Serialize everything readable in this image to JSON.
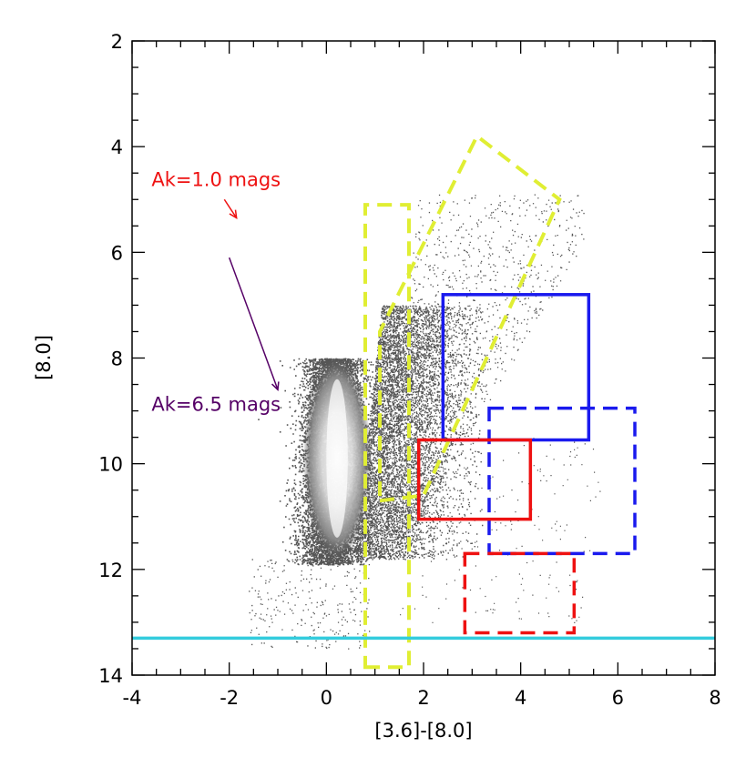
{
  "chart_data": {
    "type": "scatter",
    "xlabel": "[3.6]-[8.0]",
    "ylabel": "[8.0]",
    "xlim": [
      -4,
      8
    ],
    "ylim": [
      14,
      2
    ],
    "y_inverted": true,
    "x_ticks": [
      -4,
      -2,
      0,
      2,
      4,
      6,
      8
    ],
    "y_ticks": [
      2,
      4,
      6,
      8,
      10,
      12,
      14
    ],
    "x_tick_labels": [
      "-4",
      "-2",
      "0",
      "2",
      "4",
      "6",
      "8"
    ],
    "y_tick_labels": [
      "2",
      "4",
      "6",
      "8",
      "10",
      "12",
      "14"
    ],
    "horizontal_line": {
      "y": 13.3,
      "color": "#33ccdd"
    },
    "regions": [
      {
        "name": "yellow-dashed-vertical",
        "style": "dashed",
        "color": "#e0ee33",
        "polygon": [
          [
            0.8,
            13.85
          ],
          [
            1.7,
            13.85
          ],
          [
            1.7,
            5.1
          ],
          [
            0.8,
            5.1
          ]
        ]
      },
      {
        "name": "yellow-dashed-tilted",
        "style": "dashed",
        "color": "#e0ee33",
        "polygon": [
          [
            1.1,
            10.7
          ],
          [
            2.0,
            10.6
          ],
          [
            4.8,
            5.0
          ],
          [
            3.1,
            3.8
          ],
          [
            1.1,
            7.5
          ]
        ]
      },
      {
        "name": "blue-solid",
        "style": "solid",
        "color": "#1a1aee",
        "rect": {
          "x0": 2.4,
          "x1": 5.4,
          "y0": 6.8,
          "y1": 9.55
        }
      },
      {
        "name": "blue-dashed",
        "style": "dashed",
        "color": "#1a1aee",
        "rect": {
          "x0": 3.35,
          "x1": 6.35,
          "y0": 8.95,
          "y1": 11.7
        }
      },
      {
        "name": "red-solid",
        "style": "solid",
        "color": "#ee1111",
        "rect": {
          "x0": 1.9,
          "x1": 4.2,
          "y0": 9.55,
          "y1": 11.05
        }
      },
      {
        "name": "red-dashed",
        "style": "dashed",
        "color": "#ee1111",
        "rect": {
          "x0": 2.85,
          "x1": 5.1,
          "y0": 11.7,
          "y1": 13.2
        }
      }
    ],
    "annotations": [
      {
        "text": "Ak=1.0 mags",
        "color": "#ee1111",
        "x": -3.6,
        "y": 4.75,
        "arrow": {
          "from": [
            -2.1,
            5.0
          ],
          "to": [
            -1.85,
            5.35
          ]
        }
      },
      {
        "text": "Ak=6.5 mags",
        "color": "#550066",
        "x": -3.6,
        "y": 9.0,
        "arrow": {
          "from": [
            -2.0,
            6.1
          ],
          "to": [
            -1.0,
            8.6
          ]
        }
      }
    ],
    "scatter": {
      "color": "#555555",
      "core_color": "#ffffff",
      "description": "dense stellar locus near x=0 from y≈8 to y≈11.8 with sparse red tail"
    }
  }
}
